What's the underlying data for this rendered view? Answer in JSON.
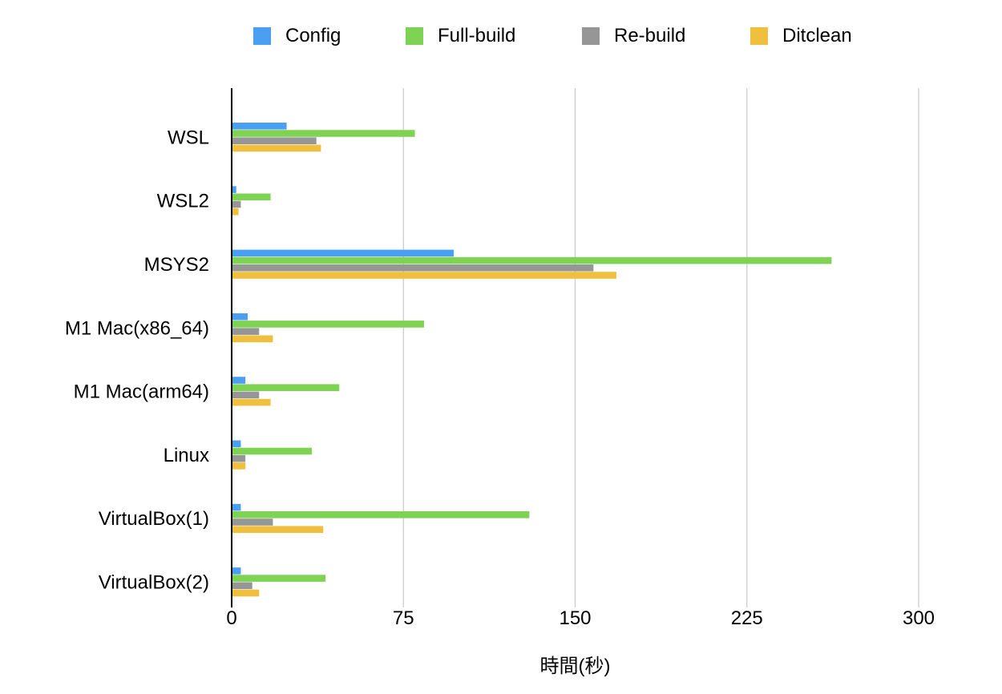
{
  "chart_data": {
    "type": "bar",
    "orientation": "horizontal",
    "categories": [
      "WSL",
      "WSL2",
      "MSYS2",
      "M1 Mac(x86_64)",
      "M1 Mac(arm64)",
      "Linux",
      "VirtualBox(1)",
      "VirtualBox(2)"
    ],
    "series": [
      {
        "name": "Config",
        "color": "#4b9ff2",
        "values": [
          24,
          2,
          97,
          7,
          6,
          4,
          4,
          4
        ]
      },
      {
        "name": "Full-build",
        "color": "#7ed352",
        "values": [
          80,
          17,
          262,
          84,
          47,
          35,
          130,
          41
        ]
      },
      {
        "name": "Re-build",
        "color": "#969696",
        "values": [
          37,
          4,
          158,
          12,
          12,
          6,
          18,
          9
        ]
      },
      {
        "name": "Ditclean",
        "color": "#f0bf3e",
        "values": [
          39,
          3,
          168,
          18,
          17,
          6,
          40,
          12
        ]
      }
    ],
    "xlim": [
      0,
      300
    ],
    "xticks": [
      "0",
      "75",
      "150",
      "225",
      "300"
    ],
    "xlabel": "時間(秒)",
    "ylabel": "",
    "title": "",
    "legend_position": "top",
    "grid": true
  }
}
